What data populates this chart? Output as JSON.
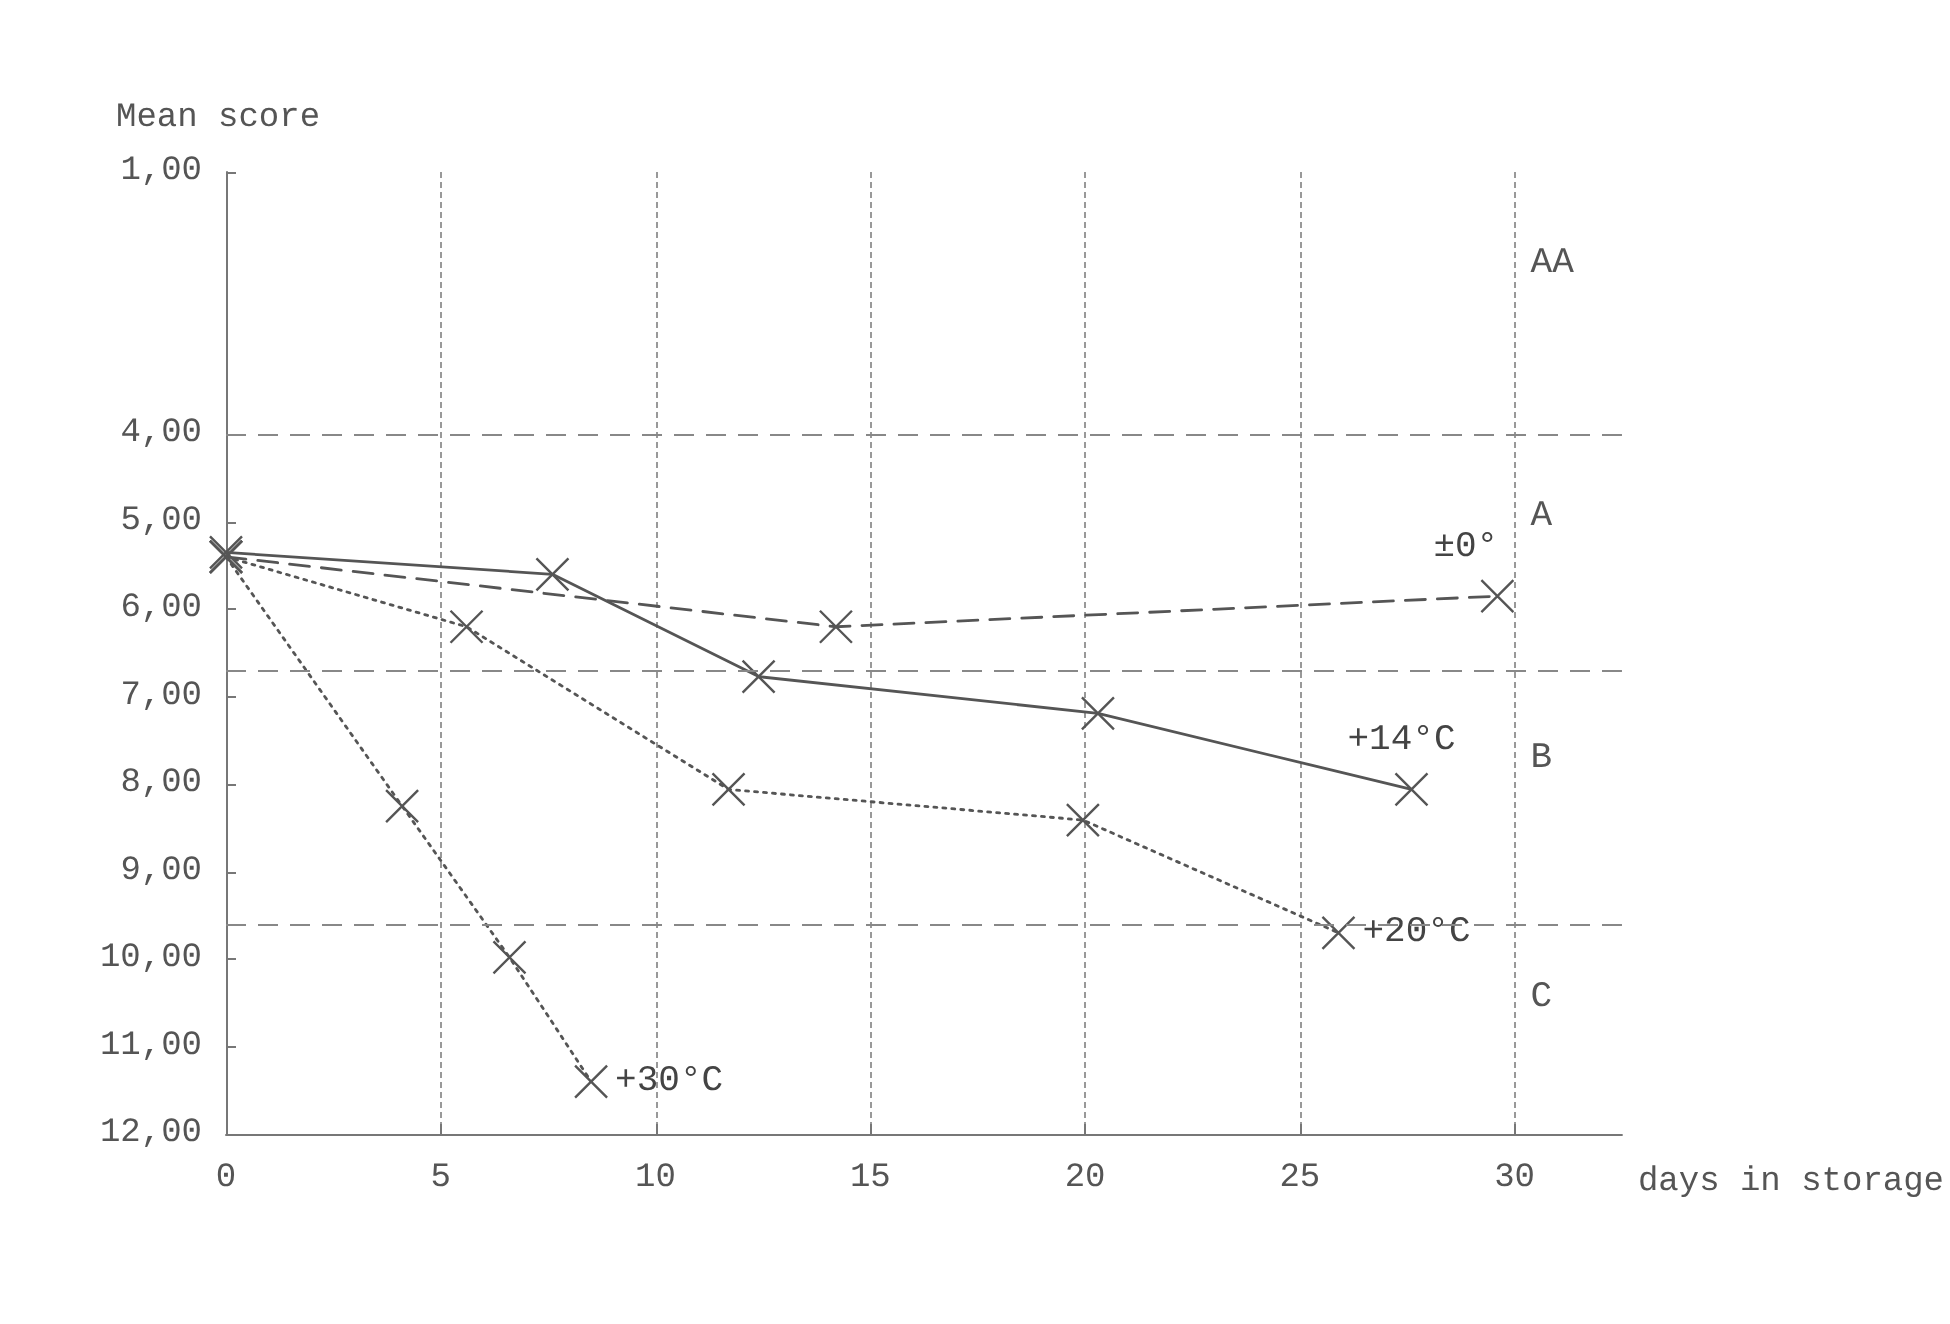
{
  "chart_data": {
    "type": "line",
    "xlabel": "days in storage",
    "ylabel": "Mean score",
    "xlim": [
      0,
      32.5
    ],
    "xticks": [
      0,
      5,
      10,
      15,
      20,
      25,
      30
    ],
    "ylim": [
      12,
      1
    ],
    "yticks": [
      {
        "value": 1,
        "label": "1,00"
      },
      {
        "value": 4,
        "label": "4,00"
      },
      {
        "value": 5,
        "label": "5,00"
      },
      {
        "value": 6,
        "label": "6,00"
      },
      {
        "value": 7,
        "label": "7,00"
      },
      {
        "value": 8,
        "label": "8,00"
      },
      {
        "value": 9,
        "label": "9,00"
      },
      {
        "value": 10,
        "label": "10,00"
      },
      {
        "value": 11,
        "label": "11,00"
      },
      {
        "value": 12,
        "label": "12,00"
      }
    ],
    "grid": "x",
    "marker": "cross",
    "legend": false,
    "series": [
      {
        "name": "±0°",
        "color": "#555555",
        "line_style": "dashed",
        "x": [
          0,
          14.2,
          29.6
        ],
        "values": [
          5.4,
          6.2,
          5.85
        ]
      },
      {
        "name": "+14°C",
        "color": "#555555",
        "line_style": "solid",
        "x": [
          0,
          7.6,
          12.4,
          20.3,
          27.6
        ],
        "values": [
          5.35,
          5.6,
          6.77,
          7.19,
          8.06
        ]
      },
      {
        "name": "+20°C",
        "color": "#555555",
        "line_style": "dotted",
        "x": [
          0,
          5.6,
          11.7,
          19.95,
          25.9
        ],
        "values": [
          5.4,
          6.2,
          8.06,
          8.41,
          9.7
        ]
      },
      {
        "name": "+30°C",
        "color": "#555555",
        "line_style": "dotted",
        "x": [
          0,
          4.1,
          6.6,
          8.5
        ],
        "values": [
          5.4,
          8.25,
          9.98,
          11.4
        ]
      }
    ],
    "ref_lines": [
      {
        "axis": "y",
        "value": 4,
        "color": "#888888"
      },
      {
        "axis": "y",
        "value": 6.7,
        "color": "#888888"
      },
      {
        "axis": "y",
        "value": 9.6,
        "color": "#888888"
      }
    ],
    "annotations": [
      "AA",
      "A",
      "B",
      "C"
    ]
  }
}
